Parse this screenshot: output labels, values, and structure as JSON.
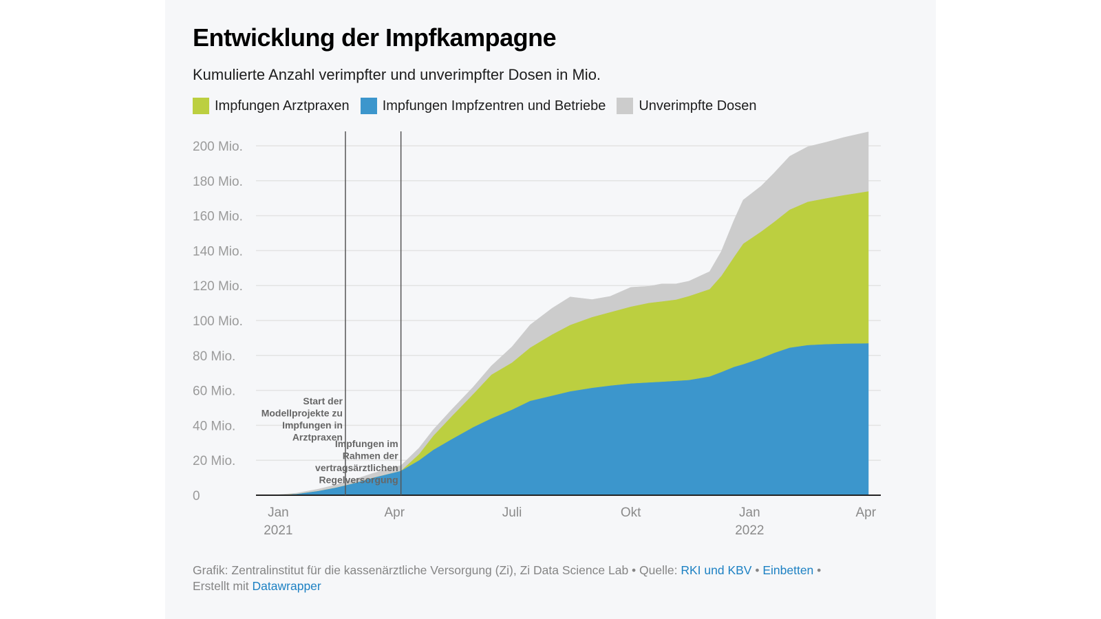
{
  "header": {
    "title": "Entwicklung der Impfkampagne",
    "subtitle": "Kumulierte Anzahl verimpfter und unverimpfter Dosen in Mio."
  },
  "legend": [
    {
      "label": "Impfungen Arztpraxen",
      "color": "#bccf40"
    },
    {
      "label": "Impfungen Impfzentren und Betriebe",
      "color": "#3c96cc"
    },
    {
      "label": "Unverimpfte Dosen",
      "color": "#cccccc"
    }
  ],
  "footer": {
    "prefix": "Grafik: Zentralinstitut für die kassenärztliche Versorgung (Zi), Zi Data Science Lab • Quelle: ",
    "source_link": "RKI und KBV",
    "sep1": " • ",
    "embed_link": "Einbetten",
    "sep2": " •",
    "created_prefix": "Erstellt mit ",
    "created_link": "Datawrapper"
  },
  "chart_data": {
    "type": "area",
    "stacked": true,
    "title": "Entwicklung der Impfkampagne",
    "subtitle": "Kumulierte Anzahl verimpfter und unverimpfter Dosen in Mio.",
    "xlabel": "",
    "ylabel": "",
    "ylim": [
      0,
      210
    ],
    "grid": true,
    "legend_position": "top-left",
    "y_ticks": [
      {
        "value": 0,
        "label": "0"
      },
      {
        "value": 20,
        "label": "20 Mio."
      },
      {
        "value": 40,
        "label": "40 Mio."
      },
      {
        "value": 60,
        "label": "60 Mio."
      },
      {
        "value": 80,
        "label": "80 Mio."
      },
      {
        "value": 100,
        "label": "100 Mio."
      },
      {
        "value": 120,
        "label": "120 Mio."
      },
      {
        "value": 140,
        "label": "140 Mio."
      },
      {
        "value": 160,
        "label": "160 Mio."
      },
      {
        "value": 180,
        "label": "180 Mio."
      },
      {
        "value": 200,
        "label": "200 Mio."
      }
    ],
    "x_ticks": [
      {
        "date": "2021-01-01",
        "label": "Jan",
        "sublabel": "2021"
      },
      {
        "date": "2021-04-01",
        "label": "Apr",
        "sublabel": ""
      },
      {
        "date": "2021-07-01",
        "label": "Juli",
        "sublabel": ""
      },
      {
        "date": "2021-10-01",
        "label": "Okt",
        "sublabel": ""
      },
      {
        "date": "2022-01-01",
        "label": "Jan",
        "sublabel": "2022"
      },
      {
        "date": "2022-04-01",
        "label": "Apr",
        "sublabel": ""
      }
    ],
    "x_range": [
      "2020-12-27",
      "2022-04-03"
    ],
    "x": [
      "2020-12-27",
      "2021-01-15",
      "2021-02-01",
      "2021-02-15",
      "2021-03-01",
      "2021-03-15",
      "2021-04-06",
      "2021-04-20",
      "2021-05-01",
      "2021-05-15",
      "2021-06-01",
      "2021-06-15",
      "2021-07-01",
      "2021-07-15",
      "2021-08-01",
      "2021-08-15",
      "2021-09-01",
      "2021-09-15",
      "2021-10-01",
      "2021-10-15",
      "2021-10-25",
      "2021-11-05",
      "2021-11-15",
      "2021-12-01",
      "2021-12-10",
      "2021-12-20",
      "2021-12-27",
      "2022-01-10",
      "2022-01-20",
      "2022-02-01",
      "2022-02-15",
      "2022-03-01",
      "2022-03-15",
      "2022-04-03"
    ],
    "series": [
      {
        "name": "Impfungen Impfzentren und Betriebe",
        "color": "#3c96cc",
        "values": [
          0,
          0.8,
          2.5,
          4.5,
          7,
          10,
          14,
          20,
          26,
          32,
          39,
          44,
          49,
          54,
          57,
          59.5,
          61.5,
          62.8,
          64,
          64.6,
          65,
          65.5,
          66,
          68,
          70.5,
          73.5,
          75,
          78.5,
          81.5,
          84.5,
          86,
          86.5,
          86.8,
          87
        ]
      },
      {
        "name": "Impfungen Arztpraxen",
        "color": "#bccf40",
        "values": [
          0,
          0,
          0,
          0,
          0,
          0,
          0,
          3.5,
          8,
          13,
          19,
          25,
          27,
          30.5,
          35,
          38,
          40.5,
          42,
          44,
          45.5,
          46,
          46.5,
          48,
          50,
          55,
          63,
          69,
          72.5,
          75,
          79,
          82,
          83.5,
          85,
          87
        ]
      },
      {
        "name": "Unverimpfte Dosen",
        "color": "#cccccc",
        "values": [
          0,
          0.4,
          1,
          1.5,
          2,
          2.5,
          3,
          3.5,
          3.5,
          3.8,
          4,
          5,
          9,
          13,
          15,
          16,
          10,
          9,
          11,
          9.5,
          10,
          9,
          8.5,
          10,
          14,
          21,
          25,
          26,
          28,
          30.5,
          31.5,
          32,
          33,
          34
        ]
      }
    ],
    "annotations": [
      {
        "date": "2021-02-22",
        "text": [
          "Start der",
          "Modellprojekte zu",
          "Impfungen in",
          "Arztpraxen"
        ]
      },
      {
        "date": "2021-04-06",
        "text": [
          "Impfungen im",
          "Rahmen der",
          "vertragsärztlichen",
          "Regelversorgung"
        ]
      }
    ]
  }
}
